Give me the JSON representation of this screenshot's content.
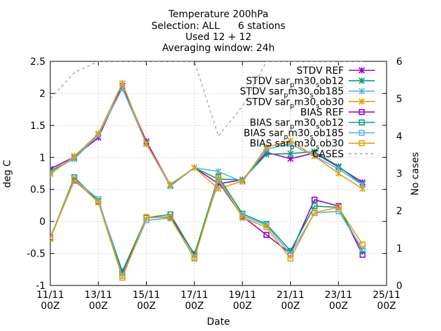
{
  "chart_data": {
    "type": "line",
    "title_lines": [
      "Temperature 200hPa",
      "Selection: ALL      6 stations",
      "Used 12 + 12",
      "Averaging window: 24h"
    ],
    "xlabel": "Date",
    "ylabel": "deg C",
    "y2label": "No cases",
    "x": [
      "11/11",
      "12/11",
      "13/11",
      "14/11",
      "15/11",
      "16/11",
      "17/11",
      "18/11",
      "19/11",
      "20/11",
      "21/11",
      "22/11",
      "23/11",
      "24/11"
    ],
    "x_ticks": [
      {
        "date": "11/11",
        "time": "00Z"
      },
      {
        "date": "13/11",
        "time": "00Z"
      },
      {
        "date": "15/11",
        "time": "00Z"
      },
      {
        "date": "17/11",
        "time": "00Z"
      },
      {
        "date": "19/11",
        "time": "00Z"
      },
      {
        "date": "21/11",
        "time": "00Z"
      },
      {
        "date": "23/11",
        "time": "00Z"
      },
      {
        "date": "25/11",
        "time": "00Z"
      }
    ],
    "ylim": [
      -1,
      2.5
    ],
    "y_ticks": [
      "-1",
      "-0.5",
      "0",
      "0.5",
      "1",
      "1.5",
      "2",
      "2.5"
    ],
    "y2lim": [
      0,
      6
    ],
    "y2_ticks": [
      "0",
      "1",
      "2",
      "3",
      "4",
      "5",
      "6"
    ],
    "grid": true,
    "legend_position": "top-right",
    "series": [
      {
        "name": "STDV REF",
        "color": "#9400d3",
        "marker": "x-star",
        "axis": "y",
        "values": [
          0.82,
          1.01,
          1.31,
          2.12,
          1.25,
          0.57,
          0.84,
          0.59,
          0.65,
          1.08,
          0.98,
          1.07,
          0.85,
          0.61
        ]
      },
      {
        "name": "STDV sar_p m30_s ob12",
        "label_parts": [
          "STDV sar",
          "p",
          "m30",
          "s",
          "ob12"
        ],
        "color": "#009e73",
        "marker": "x-star",
        "axis": "y",
        "values": [
          0.79,
          0.98,
          1.35,
          2.08,
          1.22,
          0.56,
          0.84,
          0.66,
          0.65,
          1.05,
          1.06,
          1.09,
          0.86,
          0.58
        ]
      },
      {
        "name": "STDV sar_p m30_s ob185",
        "label_parts": [
          "STDV sar",
          "p",
          "m30",
          "s",
          "ob185"
        ],
        "color": "#56b4e9",
        "marker": "x-star",
        "axis": "y",
        "values": [
          0.76,
          0.99,
          1.35,
          2.08,
          1.21,
          0.55,
          0.84,
          0.78,
          0.62,
          1.13,
          1.21,
          1.02,
          0.82,
          0.57
        ]
      },
      {
        "name": "STDV sar_p m30_s ob30",
        "label_parts": [
          "STDV sar",
          "p",
          "m30",
          "s",
          "ob30"
        ],
        "color": "#e69f00",
        "marker": "x-star",
        "axis": "y",
        "values": [
          0.74,
          1.02,
          1.37,
          2.16,
          1.21,
          0.58,
          0.84,
          0.51,
          0.63,
          1.16,
          1.26,
          1.02,
          0.75,
          0.51
        ]
      },
      {
        "name": "BIAS REF",
        "color": "#9400d3",
        "marker": "square",
        "axis": "y",
        "values": [
          -0.25,
          0.64,
          0.31,
          -0.8,
          0.06,
          0.07,
          -0.51,
          0.62,
          0.08,
          -0.21,
          -0.5,
          0.34,
          0.24,
          -0.52
        ]
      },
      {
        "name": "BIAS sar_p m30_s ob12",
        "label_parts": [
          "BIAS sar",
          "p",
          "m30",
          "s",
          "ob12"
        ],
        "color": "#009e73",
        "marker": "square",
        "axis": "y",
        "values": [
          -0.26,
          0.69,
          0.32,
          -0.78,
          0.06,
          0.11,
          -0.52,
          0.7,
          0.12,
          -0.04,
          -0.46,
          0.24,
          0.22,
          -0.46
        ]
      },
      {
        "name": "BIAS sar_p m30_s ob185",
        "label_parts": [
          "BIAS sar",
          "p",
          "m30",
          "s",
          "ob185"
        ],
        "color": "#56b4e9",
        "marker": "square",
        "axis": "y",
        "values": [
          -0.26,
          0.66,
          0.35,
          -0.85,
          0.02,
          0.05,
          -0.56,
          0.64,
          0.09,
          -0.06,
          -0.51,
          0.13,
          0.16,
          -0.43
        ]
      },
      {
        "name": "BIAS sar_p m30_s ob30",
        "label_parts": [
          "BIAS sar",
          "p",
          "m30",
          "s",
          "ob30"
        ],
        "color": "#e69f00",
        "marker": "square",
        "axis": "y",
        "values": [
          -0.27,
          0.65,
          0.3,
          -0.88,
          0.07,
          0.06,
          -0.58,
          0.68,
          0.06,
          -0.09,
          -0.58,
          0.14,
          0.22,
          -0.36
        ]
      },
      {
        "name": "CASES",
        "color": "#a0a0a0",
        "marker": "none",
        "dashed": true,
        "axis": "y2",
        "values": [
          5,
          5.7,
          6,
          6,
          6,
          6,
          6,
          4,
          4.8,
          6,
          6,
          6,
          6,
          6
        ]
      }
    ]
  }
}
